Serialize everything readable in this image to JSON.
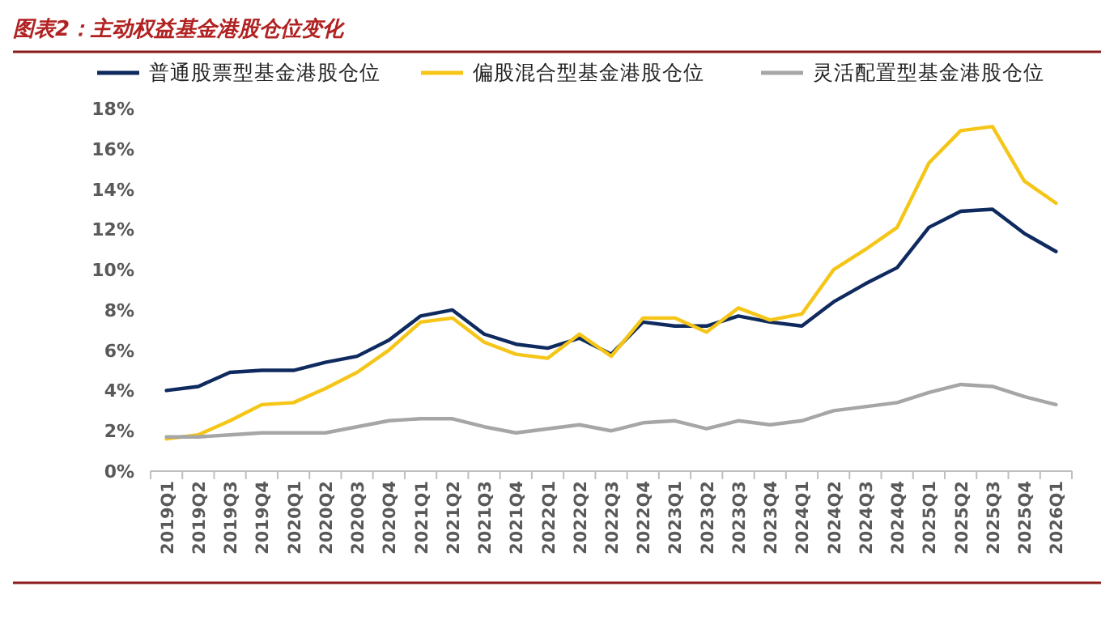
{
  "chart_data": {
    "type": "line",
    "title": "图表2：主动权益基金港股仓位变化",
    "categories": [
      "2019Q1",
      "2019Q2",
      "2019Q3",
      "2019Q4",
      "2020Q1",
      "2020Q2",
      "2020Q3",
      "2020Q4",
      "2021Q1",
      "2021Q2",
      "2021Q3",
      "2021Q4",
      "2022Q1",
      "2022Q2",
      "2022Q3",
      "2022Q4",
      "2023Q1",
      "2023Q2",
      "2023Q3",
      "2023Q4",
      "2024Q1",
      "2024Q2",
      "2024Q3",
      "2024Q4",
      "2025Q1",
      "2025Q2",
      "2025Q3",
      "2025Q4",
      "2026Q1"
    ],
    "series": [
      {
        "name": "普通股票型基金港股仓位",
        "color": "#0e2a5e",
        "values": [
          4.0,
          4.2,
          4.9,
          5.0,
          5.0,
          5.4,
          5.7,
          6.5,
          7.7,
          8.0,
          6.8,
          6.3,
          6.1,
          6.6,
          5.8,
          7.4,
          7.2,
          7.2,
          7.7,
          7.4,
          7.2,
          8.4,
          9.3,
          10.1,
          12.1,
          12.9,
          13.0,
          11.8,
          10.9
        ]
      },
      {
        "name": "偏股混合型基金港股仓位",
        "color": "#f5c518",
        "values": [
          1.6,
          1.8,
          2.5,
          3.3,
          3.4,
          4.1,
          4.9,
          6.0,
          7.4,
          7.6,
          6.4,
          5.8,
          5.6,
          6.8,
          5.7,
          7.6,
          7.6,
          6.9,
          8.1,
          7.5,
          7.8,
          10.0,
          11.0,
          12.1,
          15.3,
          16.9,
          17.1,
          14.4,
          13.3
        ]
      },
      {
        "name": "灵活配置型基金港股仓位",
        "color": "#a6a6a6",
        "values": [
          1.7,
          1.7,
          1.8,
          1.9,
          1.9,
          1.9,
          2.2,
          2.5,
          2.6,
          2.6,
          2.2,
          1.9,
          2.1,
          2.3,
          2.0,
          2.4,
          2.5,
          2.1,
          2.5,
          2.3,
          2.5,
          3.0,
          3.2,
          3.4,
          3.9,
          4.3,
          4.2,
          3.7,
          3.3
        ]
      }
    ],
    "ylim": [
      0,
      18
    ],
    "yticks": [
      {
        "value": 0,
        "label": "0%"
      },
      {
        "value": 2,
        "label": "2%"
      },
      {
        "value": 4,
        "label": "4%"
      },
      {
        "value": 6,
        "label": "6%"
      },
      {
        "value": 8,
        "label": "8%"
      },
      {
        "value": 10,
        "label": "10%"
      },
      {
        "value": 12,
        "label": "12%"
      },
      {
        "value": 14,
        "label": "14%"
      },
      {
        "value": 16,
        "label": "16%"
      },
      {
        "value": 18,
        "label": "18%"
      }
    ],
    "grid": false,
    "legend": "top",
    "marker": "none",
    "line_style": "solid"
  }
}
